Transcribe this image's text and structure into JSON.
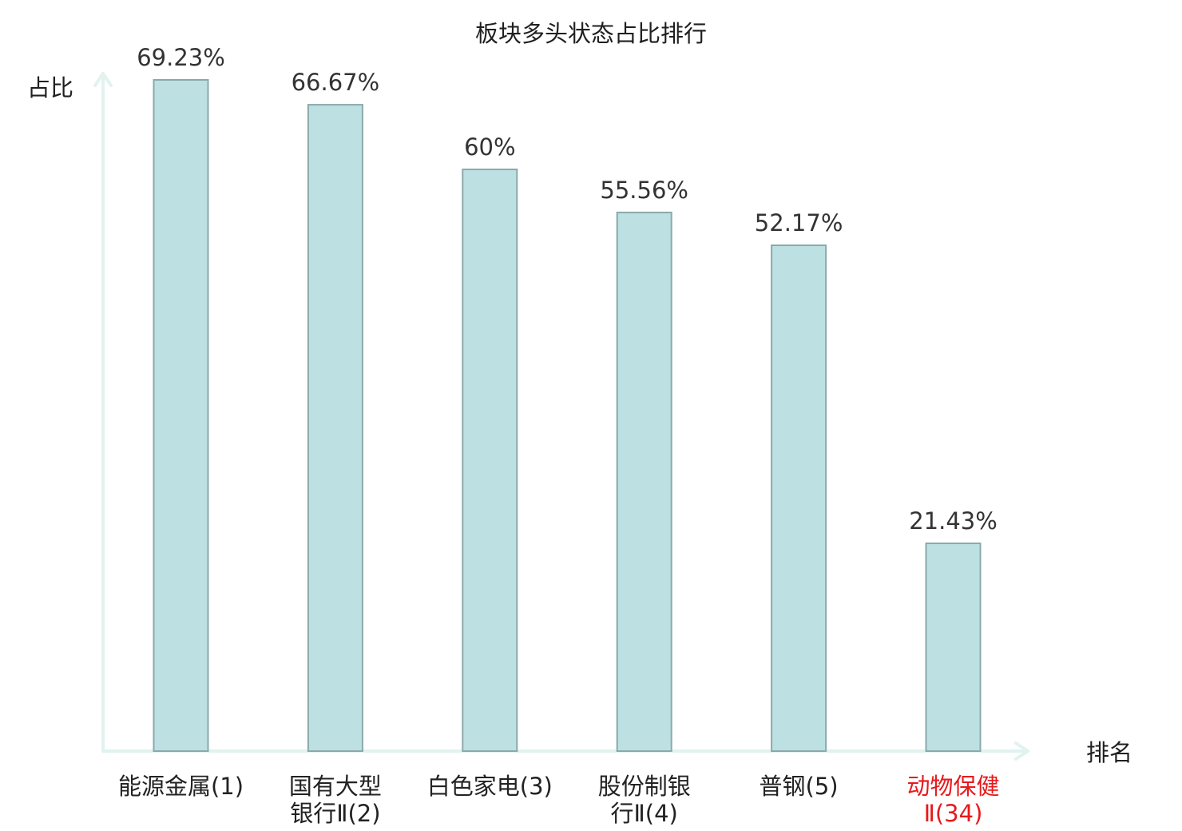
{
  "chart_data": {
    "type": "bar",
    "title": "板块多头状态占比排行",
    "ylabel": "占比",
    "xlabel": "排名",
    "ylim": [
      0,
      69.23
    ],
    "grid": false,
    "legend": "none",
    "categories": [
      {
        "lines": [
          "能源金属(1)"
        ],
        "highlight": false
      },
      {
        "lines": [
          "国有大型",
          "银行Ⅱ(2)"
        ],
        "highlight": false
      },
      {
        "lines": [
          "白色家电(3)"
        ],
        "highlight": false
      },
      {
        "lines": [
          "股份制银",
          "行Ⅱ(4)"
        ],
        "highlight": false
      },
      {
        "lines": [
          "普钢(5)"
        ],
        "highlight": false
      },
      {
        "lines": [
          "动物保健",
          "Ⅱ(34)"
        ],
        "highlight": true
      }
    ],
    "values": [
      69.23,
      66.67,
      60,
      55.56,
      52.17,
      21.43
    ],
    "value_labels": [
      "69.23%",
      "66.67%",
      "60%",
      "55.56%",
      "52.17%",
      "21.43%"
    ],
    "colors": {
      "bar_fill": "#bde1e3",
      "bar_stroke": "#8aa9ab",
      "axis": "#e1f2ef",
      "highlight_label": "#e8191c"
    }
  }
}
